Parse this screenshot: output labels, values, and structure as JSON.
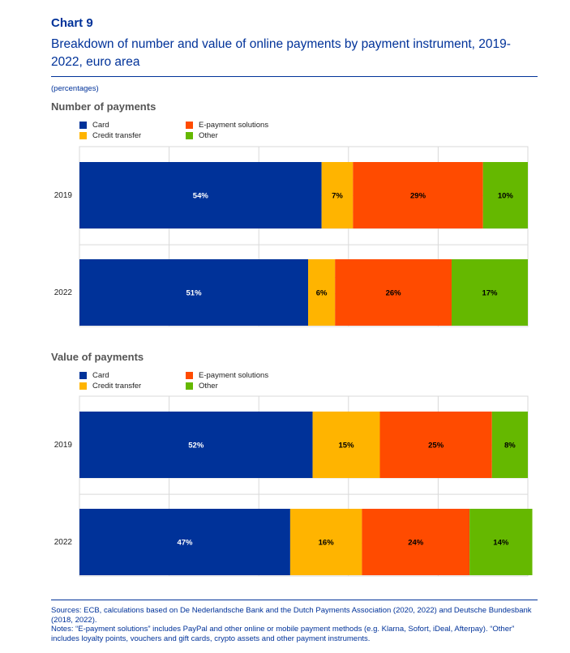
{
  "header": {
    "chart_label": "Chart 9",
    "title": "Breakdown of number and value of online payments by payment instrument, 2019-2022, euro area",
    "units": "(percentages)"
  },
  "colors": {
    "Card": "#003299",
    "Credit transfer": "#FFB400",
    "E-payment solutions": "#FF4B00",
    "Other": "#65B800"
  },
  "chart_data": [
    {
      "type": "bar",
      "orientation": "horizontal",
      "stacked": true,
      "title": "Number of payments",
      "categories": [
        "2019",
        "2022"
      ],
      "series": [
        {
          "name": "Card",
          "values": [
            54,
            51
          ],
          "labels": [
            "54%",
            "51%"
          ]
        },
        {
          "name": "Credit transfer",
          "values": [
            7,
            6
          ],
          "labels": [
            "7%",
            "6%"
          ]
        },
        {
          "name": "E-payment solutions",
          "values": [
            29,
            26
          ],
          "labels": [
            "29%",
            "26%"
          ]
        },
        {
          "name": "Other",
          "values": [
            10,
            17
          ],
          "labels": [
            "10%",
            "17%"
          ]
        }
      ],
      "xlim": [
        0,
        100
      ],
      "grid": true,
      "legend": "top-left"
    },
    {
      "type": "bar",
      "orientation": "horizontal",
      "stacked": true,
      "title": "Value of payments",
      "categories": [
        "2019",
        "2022"
      ],
      "series": [
        {
          "name": "Card",
          "values": [
            52,
            47
          ],
          "labels": [
            "52%",
            "47%"
          ]
        },
        {
          "name": "Credit transfer",
          "values": [
            15,
            16
          ],
          "labels": [
            "15%",
            "16%"
          ]
        },
        {
          "name": "E-payment solutions",
          "values": [
            25,
            24
          ],
          "labels": [
            "25%",
            "24%"
          ]
        },
        {
          "name": "Other",
          "values": [
            8,
            14
          ],
          "labels": [
            "8%",
            "14%"
          ]
        }
      ],
      "xlim": [
        0,
        100
      ],
      "grid": true,
      "legend": "top-left"
    }
  ],
  "footer": {
    "sources": "Sources: ECB, calculations based on De Nederlandsche Bank and the Dutch Payments Association (2020, 2022) and Deutsche Bundesbank (2018, 2022).",
    "notes": "Notes: “E-payment solutions” includes PayPal and other online or mobile payment methods (e.g. Klarna, Sofort, iDeal, Afterpay). “Other” includes loyalty points, vouchers and gift cards, crypto assets and other payment instruments."
  }
}
